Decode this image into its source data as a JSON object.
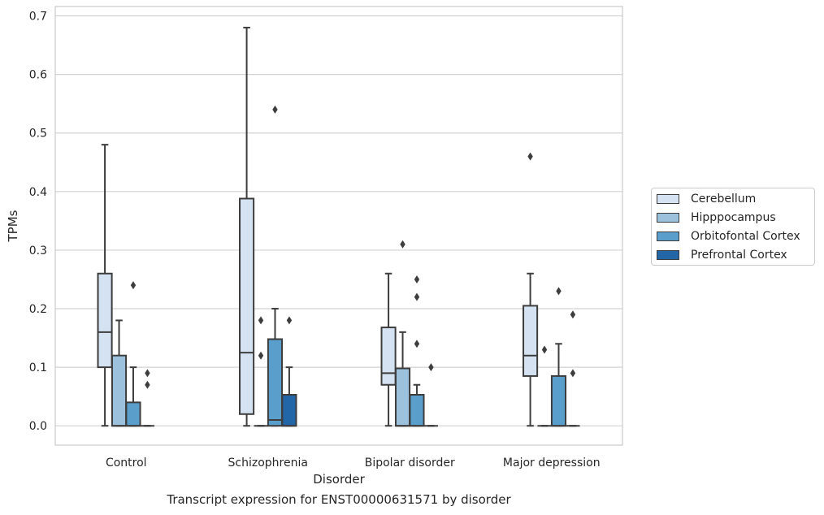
{
  "chart_data": {
    "type": "boxplot",
    "title": "",
    "caption": "Transcript expression for ENST00000631571 by disorder",
    "xlabel": "Disorder",
    "ylabel": "TPMs",
    "ylim": [
      -0.033,
      0.716
    ],
    "yticks": [
      "0.0",
      "0.1",
      "0.2",
      "0.3",
      "0.4",
      "0.5",
      "0.6",
      "0.7"
    ],
    "ytick_values": [
      0,
      0.1,
      0.2,
      0.3,
      0.4,
      0.5,
      0.6,
      0.7
    ],
    "grid": true,
    "legend_position": "right",
    "categories": [
      "Control",
      "Schizophrenia",
      "Bipolar disorder",
      "Major depression"
    ],
    "series": [
      {
        "name": "Cerebellum",
        "color": "#d4e2f1",
        "boxes": [
          {
            "q1": 0.1,
            "median": 0.16,
            "q3": 0.26,
            "whislo": 0.0,
            "whishi": 0.48,
            "fliers": []
          },
          {
            "q1": 0.02,
            "median": 0.125,
            "q3": 0.388,
            "whislo": 0.0,
            "whishi": 0.68,
            "fliers": []
          },
          {
            "q1": 0.07,
            "median": 0.09,
            "q3": 0.168,
            "whislo": 0.0,
            "whishi": 0.26,
            "fliers": []
          },
          {
            "q1": 0.085,
            "median": 0.12,
            "q3": 0.205,
            "whislo": 0.0,
            "whishi": 0.26,
            "fliers": [
              0.46
            ]
          }
        ]
      },
      {
        "name": "Hipppocampus",
        "color": "#9cc1dd",
        "boxes": [
          {
            "q1": 0.0,
            "median": 0.0,
            "q3": 0.12,
            "whislo": 0.0,
            "whishi": 0.18,
            "fliers": []
          },
          {
            "q1": 0.0,
            "median": 0.0,
            "q3": 0.0,
            "whislo": 0.0,
            "whishi": 0.0,
            "fliers": [
              0.12,
              0.18
            ]
          },
          {
            "q1": 0.0,
            "median": 0.0,
            "q3": 0.098,
            "whislo": 0.0,
            "whishi": 0.16,
            "fliers": [
              0.31
            ]
          },
          {
            "q1": 0.0,
            "median": 0.0,
            "q3": 0.0,
            "whislo": 0.0,
            "whishi": 0.0,
            "fliers": [
              0.13
            ]
          }
        ]
      },
      {
        "name": "Orbitofontal Cortex",
        "color": "#5a9fcb",
        "boxes": [
          {
            "q1": 0.0,
            "median": 0.0,
            "q3": 0.04,
            "whislo": 0.0,
            "whishi": 0.1,
            "fliers": [
              0.24
            ]
          },
          {
            "q1": 0.0,
            "median": 0.01,
            "q3": 0.148,
            "whislo": 0.0,
            "whishi": 0.2,
            "fliers": [
              0.54
            ]
          },
          {
            "q1": 0.0,
            "median": 0.0,
            "q3": 0.053,
            "whislo": 0.0,
            "whishi": 0.07,
            "fliers": [
              0.14,
              0.22,
              0.25
            ]
          },
          {
            "q1": 0.0,
            "median": 0.0,
            "q3": 0.085,
            "whislo": 0.0,
            "whishi": 0.14,
            "fliers": [
              0.23
            ]
          }
        ]
      },
      {
        "name": "Prefrontal Cortex",
        "color": "#2266a8",
        "boxes": [
          {
            "q1": 0.0,
            "median": 0.0,
            "q3": 0.0,
            "whislo": 0.0,
            "whishi": 0.0,
            "fliers": [
              0.07,
              0.09
            ]
          },
          {
            "q1": 0.0,
            "median": 0.0,
            "q3": 0.053,
            "whislo": 0.0,
            "whishi": 0.1,
            "fliers": [
              0.18
            ]
          },
          {
            "q1": 0.0,
            "median": 0.0,
            "q3": 0.0,
            "whislo": 0.0,
            "whishi": 0.0,
            "fliers": [
              0.1
            ]
          },
          {
            "q1": 0.0,
            "median": 0.0,
            "q3": 0.0,
            "whislo": 0.0,
            "whishi": 0.0,
            "fliers": [
              0.09,
              0.19
            ]
          }
        ]
      }
    ]
  }
}
